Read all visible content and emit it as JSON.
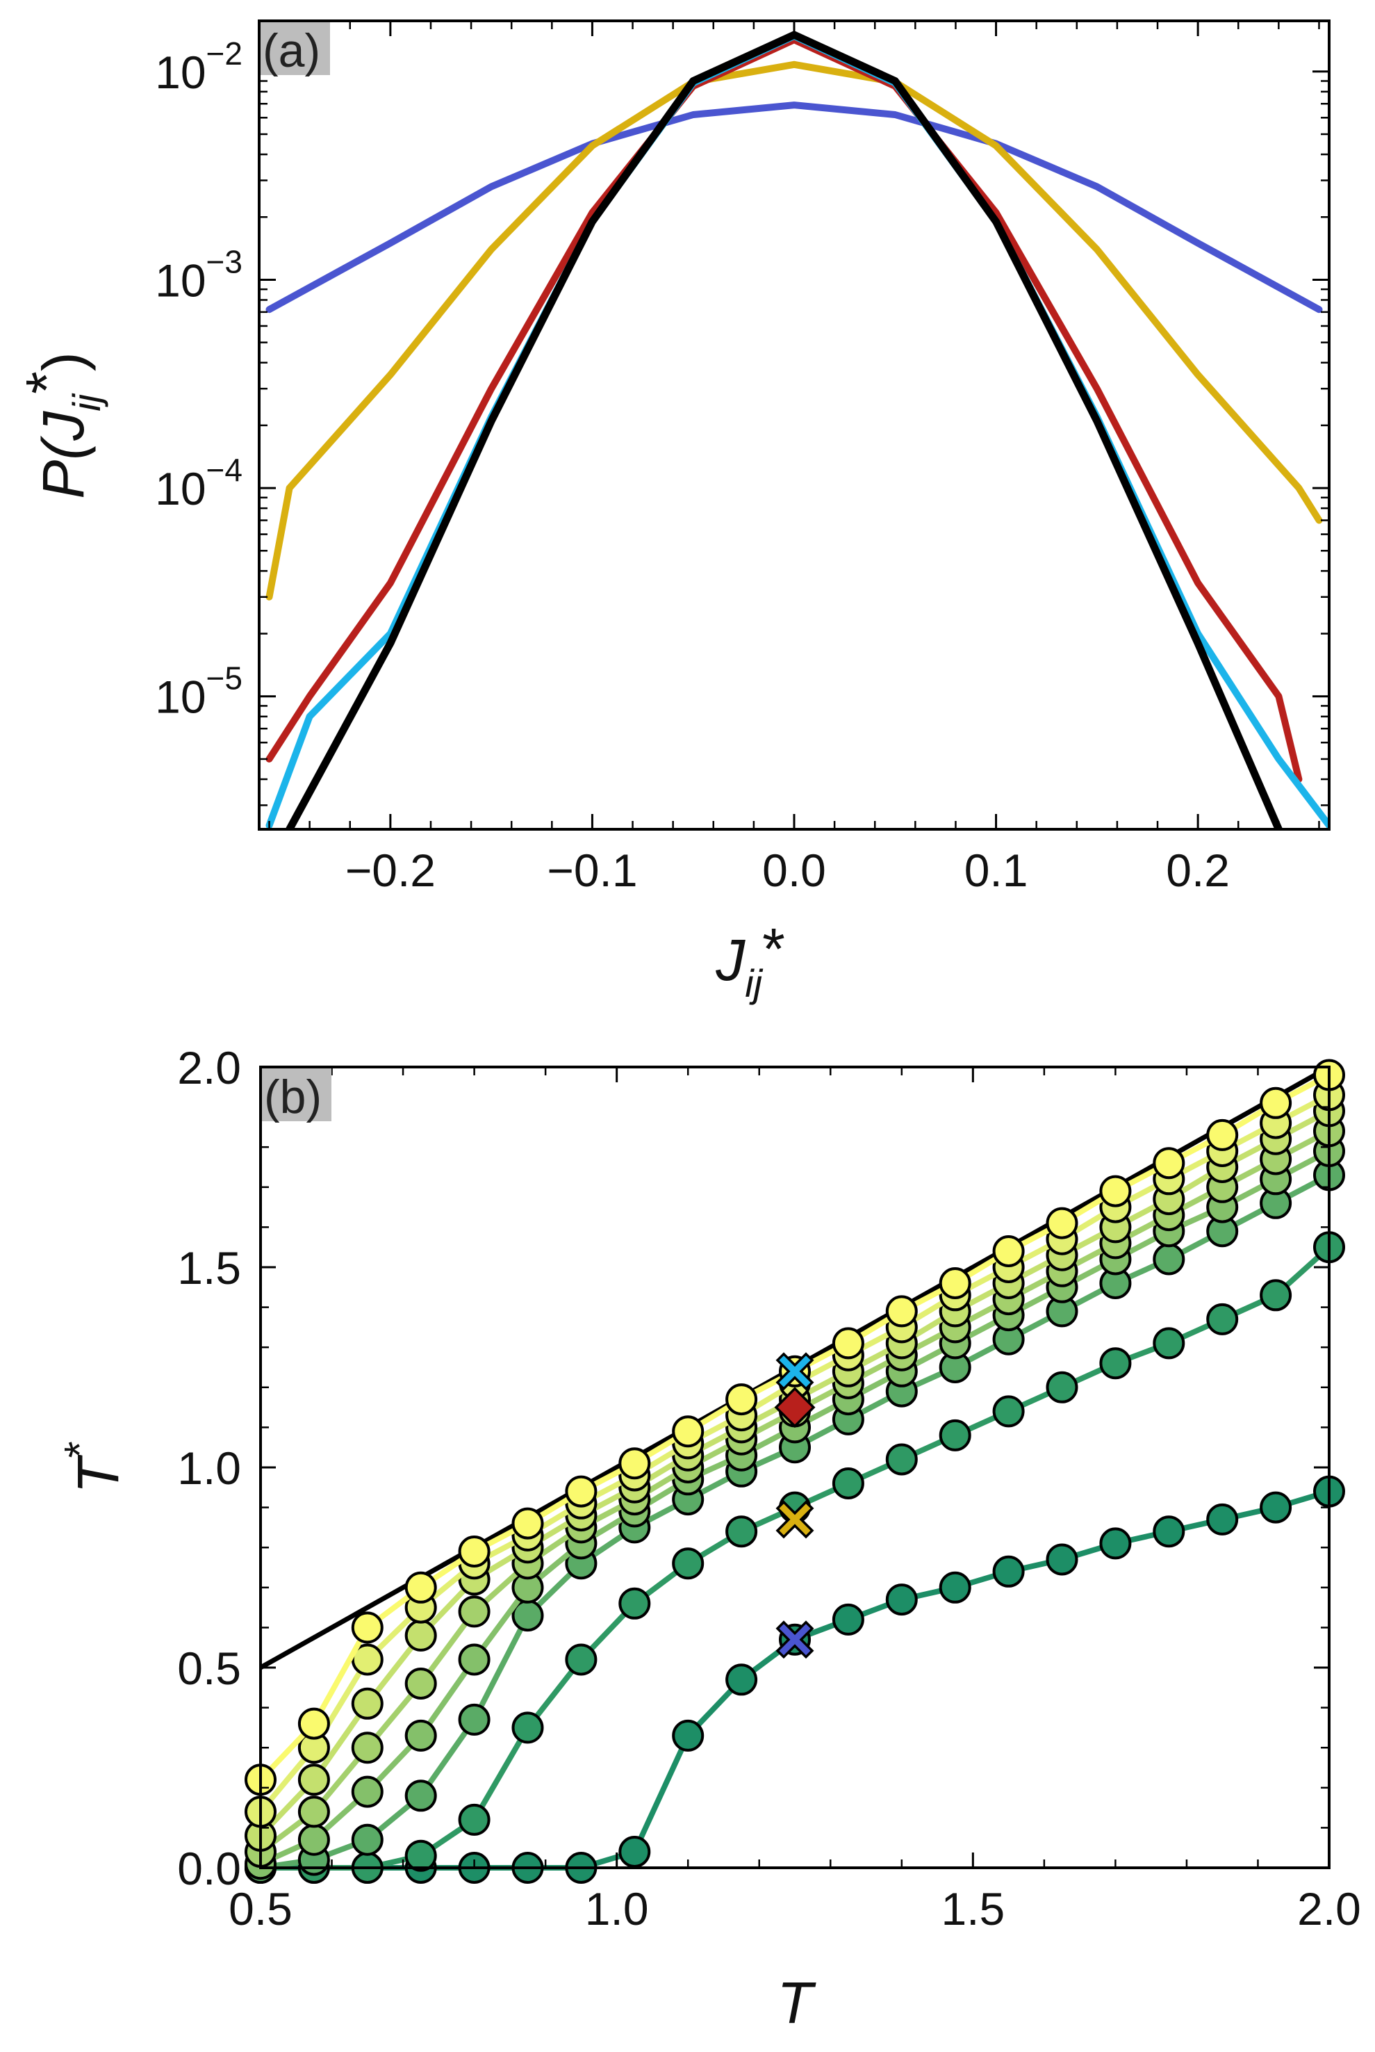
{
  "chart_data": [
    {
      "id": "a",
      "type": "line",
      "panel_label": "(a)",
      "xlabel": "J",
      "xlabel_sub": "ij",
      "xlabel_sup": "*",
      "ylabel": "P(J",
      "ylabel_sub": "ij",
      "ylabel_sup": "*",
      "ylabel_close": ")",
      "yscale": "log",
      "xlim": [
        -0.265,
        0.265
      ],
      "ylim": [
        2.3e-06,
        0.0175
      ],
      "xticks": [
        -0.2,
        -0.1,
        0.0,
        0.1,
        0.2
      ],
      "xtick_labels": [
        "−0.2",
        "−0.1",
        "0.0",
        "0.1",
        "0.2"
      ],
      "yticks": [
        {
          "value": 0.01,
          "base": "10",
          "exp": "−2"
        },
        {
          "value": 0.001,
          "base": "10",
          "exp": "−3"
        },
        {
          "value": 0.0001,
          "base": "10",
          "exp": "−4"
        },
        {
          "value": 1e-05,
          "base": "10",
          "exp": "−5"
        }
      ],
      "series": [
        {
          "name": "blue",
          "color": "#4a55d0",
          "x": [
            -0.26,
            -0.2,
            -0.15,
            -0.1,
            -0.05,
            0.0,
            0.05,
            0.1,
            0.15,
            0.2,
            0.26
          ],
          "y": [
            0.00072,
            0.0015,
            0.0028,
            0.0045,
            0.0062,
            0.0069,
            0.0062,
            0.0045,
            0.0028,
            0.0015,
            0.00072
          ]
        },
        {
          "name": "gold",
          "color": "#d9b010",
          "x": [
            -0.26,
            -0.25,
            -0.2,
            -0.15,
            -0.1,
            -0.05,
            0.0,
            0.05,
            0.1,
            0.15,
            0.2,
            0.25,
            0.26
          ],
          "y": [
            3e-05,
            0.0001,
            0.00035,
            0.0014,
            0.0044,
            0.0089,
            0.0108,
            0.0089,
            0.0044,
            0.0014,
            0.00035,
            0.0001,
            7e-05
          ]
        },
        {
          "name": "red",
          "color": "#b8201c",
          "x": [
            -0.26,
            -0.24,
            -0.2,
            -0.15,
            -0.1,
            -0.05,
            0.0,
            0.05,
            0.1,
            0.15,
            0.2,
            0.24,
            0.25
          ],
          "y": [
            5e-06,
            1e-05,
            3.5e-05,
            0.0003,
            0.0021,
            0.0085,
            0.0142,
            0.0085,
            0.0021,
            0.0003,
            3.5e-05,
            1e-05,
            4e-06
          ]
        },
        {
          "name": "cyan",
          "color": "#1cb4ea",
          "x": [
            -0.26,
            -0.24,
            -0.2,
            -0.15,
            -0.1,
            -0.05,
            0.0,
            0.05,
            0.1,
            0.15,
            0.2,
            0.24,
            0.265
          ],
          "y": [
            2.4e-06,
            8e-06,
            2e-05,
            0.00022,
            0.0019,
            0.0088,
            0.0148,
            0.0088,
            0.0019,
            0.00022,
            2e-05,
            5e-06,
            2.4e-06
          ]
        },
        {
          "name": "black",
          "color": "#000000",
          "x": [
            -0.25,
            -0.2,
            -0.15,
            -0.1,
            -0.05,
            0.0,
            0.05,
            0.1,
            0.15,
            0.2,
            0.24
          ],
          "y": [
            2.3e-06,
            1.8e-05,
            0.00021,
            0.0019,
            0.009,
            0.015,
            0.009,
            0.0019,
            0.00021,
            1.8e-05,
            2.3e-06
          ]
        }
      ]
    },
    {
      "id": "b",
      "type": "line",
      "panel_label": "(b)",
      "xlabel": "T",
      "ylabel": "T",
      "ylabel_sup": "*",
      "xlim": [
        0.5,
        2.0
      ],
      "ylim": [
        0.0,
        2.0
      ],
      "xticks": [
        0.5,
        1.0,
        1.5,
        2.0
      ],
      "xtick_labels": [
        "0.5",
        "1.0",
        "1.5",
        "2.0"
      ],
      "yticks": [
        0.0,
        0.5,
        1.0,
        1.5,
        2.0
      ],
      "ytick_labels": [
        "0.0",
        "0.5",
        "1.0",
        "1.5",
        "2.0"
      ],
      "x": [
        0.5,
        0.575,
        0.65,
        0.725,
        0.8,
        0.875,
        0.95,
        1.025,
        1.1,
        1.175,
        1.25,
        1.325,
        1.4,
        1.475,
        1.55,
        1.625,
        1.7,
        1.775,
        1.85,
        1.925,
        2.0
      ],
      "reference_line": {
        "name": "T* = T",
        "color": "#000000",
        "x": [
          0.5,
          2.0
        ],
        "y": [
          0.5,
          2.0
        ]
      },
      "series": [
        {
          "name": "s1",
          "color": "#fafa6e",
          "y": [
            0.22,
            0.36,
            0.6,
            0.7,
            0.79,
            0.86,
            0.94,
            1.01,
            1.09,
            1.17,
            1.24,
            1.31,
            1.39,
            1.46,
            1.54,
            1.61,
            1.69,
            1.76,
            1.83,
            1.91,
            1.98
          ]
        },
        {
          "name": "s2",
          "color": "#e2ef72",
          "y": [
            0.14,
            0.3,
            0.52,
            0.65,
            0.76,
            0.83,
            0.91,
            0.98,
            1.06,
            1.13,
            1.21,
            1.28,
            1.35,
            1.43,
            1.5,
            1.57,
            1.65,
            1.72,
            1.79,
            1.86,
            1.93
          ]
        },
        {
          "name": "s3",
          "color": "#c4e06e",
          "y": [
            0.08,
            0.22,
            0.41,
            0.58,
            0.72,
            0.8,
            0.88,
            0.95,
            1.03,
            1.1,
            1.17,
            1.24,
            1.31,
            1.39,
            1.46,
            1.53,
            1.6,
            1.67,
            1.75,
            1.82,
            1.89
          ]
        },
        {
          "name": "s4",
          "color": "#a4d06c",
          "y": [
            0.04,
            0.14,
            0.3,
            0.46,
            0.64,
            0.76,
            0.85,
            0.92,
            1.0,
            1.07,
            1.14,
            1.21,
            1.28,
            1.35,
            1.42,
            1.49,
            1.56,
            1.63,
            1.7,
            1.77,
            1.84
          ]
        },
        {
          "name": "s5",
          "color": "#84c06a",
          "y": [
            0.01,
            0.07,
            0.19,
            0.33,
            0.52,
            0.7,
            0.81,
            0.89,
            0.97,
            1.03,
            1.1,
            1.17,
            1.24,
            1.31,
            1.38,
            1.45,
            1.52,
            1.59,
            1.65,
            1.72,
            1.79
          ]
        },
        {
          "name": "s6",
          "color": "#5aab66",
          "y": [
            0.0,
            0.02,
            0.07,
            0.18,
            0.37,
            0.63,
            0.76,
            0.85,
            0.92,
            0.99,
            1.05,
            1.12,
            1.19,
            1.25,
            1.32,
            1.39,
            1.46,
            1.52,
            1.59,
            1.66,
            1.73
          ]
        },
        {
          "name": "s7",
          "color": "#2f9964",
          "y": [
            0.0,
            0.0,
            0.0,
            0.03,
            0.12,
            0.35,
            0.52,
            0.66,
            0.76,
            0.84,
            0.9,
            0.96,
            1.02,
            1.08,
            1.14,
            1.2,
            1.26,
            1.31,
            1.37,
            1.43,
            1.55
          ]
        },
        {
          "name": "s8",
          "color": "#1d8e66",
          "y": [
            0.0,
            0.0,
            0.0,
            0.0,
            0.0,
            0.0,
            0.0,
            0.04,
            0.33,
            0.47,
            0.57,
            0.62,
            0.67,
            0.7,
            0.74,
            0.77,
            0.81,
            0.84,
            0.87,
            0.9,
            0.94
          ]
        }
      ],
      "markers": [
        {
          "name": "cyan-cross",
          "shape": "x",
          "color": "#1cb4ea",
          "x": 1.25,
          "y": 1.24
        },
        {
          "name": "red-diamond",
          "shape": "diamond",
          "color": "#b8201c",
          "x": 1.25,
          "y": 1.15
        },
        {
          "name": "gold-cross",
          "shape": "x",
          "color": "#d9b010",
          "x": 1.25,
          "y": 0.87
        },
        {
          "name": "blue-cross",
          "shape": "x",
          "color": "#4a55d0",
          "x": 1.25,
          "y": 0.57
        }
      ]
    }
  ]
}
